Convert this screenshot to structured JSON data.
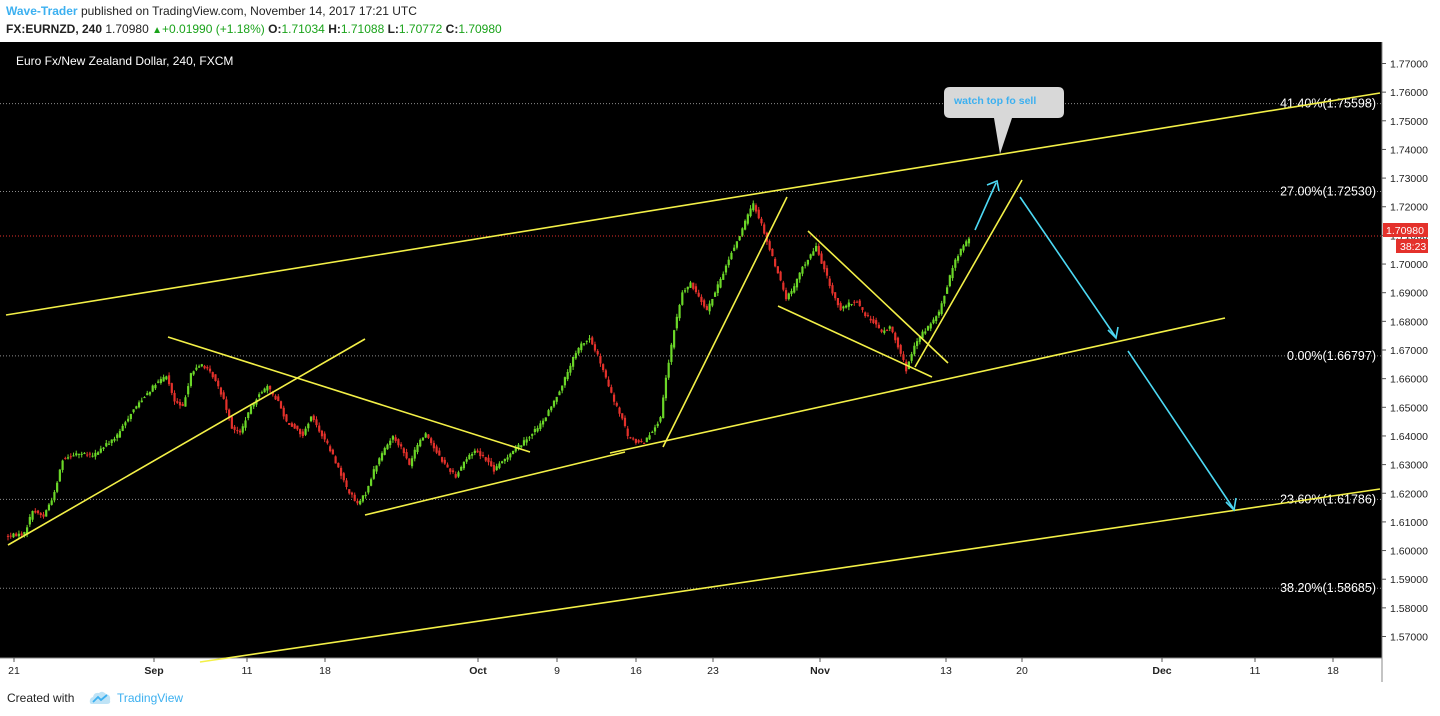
{
  "header": {
    "author": "Wave-Trader",
    "published": "published on TradingView.com, November 14, 2017 17:21 UTC",
    "symbol": "FX:EURNZD, 240",
    "last": "1.70980",
    "change_arrow": "▲",
    "change": "+0.01990 (+1.18%)",
    "o_label": "O:",
    "o_value": "1.71034",
    "h_label": "H:",
    "h_value": "1.71088",
    "l_label": "L:",
    "l_value": "1.70772",
    "c_label": "C:",
    "c_value": "1.70980"
  },
  "footer": {
    "created_with": "Created with",
    "brand": "TradingView"
  },
  "colors": {
    "background": "#000000",
    "up": "#6bd728",
    "down": "#e4312b",
    "trendline": "#f3f047",
    "arrow": "#4dd9f4",
    "last_price": "#e4312b"
  },
  "chart_data": {
    "type": "candlestick",
    "title": "Euro Fx/New Zealand Dollar, 240, FXCM",
    "ylim": [
      1.5625,
      1.7775
    ],
    "yticks": [
      "1.77000",
      "1.76000",
      "1.75000",
      "1.74000",
      "1.73000",
      "1.72000",
      "1.71000",
      "1.70000",
      "1.69000",
      "1.68000",
      "1.67000",
      "1.66000",
      "1.65000",
      "1.64000",
      "1.63000",
      "1.62000",
      "1.61000",
      "1.60000",
      "1.59000",
      "1.58000",
      "1.57000"
    ],
    "xticks": [
      "21",
      "Sep",
      "11",
      "18",
      "Oct",
      "9",
      "16",
      "23",
      "Nov",
      "13",
      "20",
      "Dec",
      "11",
      "18"
    ],
    "xtick_bold": [
      "Sep",
      "Oct",
      "Nov",
      "Dec"
    ],
    "last_price": "1.70980",
    "countdown": "38:23",
    "fib_levels": [
      {
        "label": "41.40%(1.75598)",
        "price": 1.75598
      },
      {
        "label": "27.00%(1.72530)",
        "price": 1.7253
      },
      {
        "label": "0.00%(1.66797)",
        "price": 1.66797
      },
      {
        "label": "23.60%(1.61786)",
        "price": 1.61786
      },
      {
        "label": "38.20%(1.58685)",
        "price": 1.58685
      }
    ],
    "annotation": "watch top fo sell",
    "price_path": [
      [
        0,
        1.605
      ],
      [
        6,
        1.606
      ],
      [
        9,
        1.614
      ],
      [
        13,
        1.612
      ],
      [
        17,
        1.62
      ],
      [
        20,
        1.632
      ],
      [
        25,
        1.634
      ],
      [
        31,
        1.633
      ],
      [
        36,
        1.637
      ],
      [
        40,
        1.64
      ],
      [
        45,
        1.648
      ],
      [
        50,
        1.654
      ],
      [
        54,
        1.658
      ],
      [
        58,
        1.661
      ],
      [
        61,
        1.652
      ],
      [
        64,
        1.65
      ],
      [
        67,
        1.662
      ],
      [
        71,
        1.665
      ],
      [
        75,
        1.661
      ],
      [
        79,
        1.653
      ],
      [
        82,
        1.643
      ],
      [
        85,
        1.641
      ],
      [
        88,
        1.648
      ],
      [
        92,
        1.655
      ],
      [
        95,
        1.657
      ],
      [
        99,
        1.652
      ],
      [
        102,
        1.645
      ],
      [
        105,
        1.643
      ],
      [
        108,
        1.64
      ],
      [
        111,
        1.647
      ],
      [
        114,
        1.642
      ],
      [
        117,
        1.637
      ],
      [
        120,
        1.631
      ],
      [
        124,
        1.622
      ],
      [
        128,
        1.616
      ],
      [
        131,
        1.62
      ],
      [
        134,
        1.628
      ],
      [
        137,
        1.634
      ],
      [
        141,
        1.64
      ],
      [
        144,
        1.636
      ],
      [
        147,
        1.63
      ],
      [
        150,
        1.637
      ],
      [
        153,
        1.641
      ],
      [
        156,
        1.636
      ],
      [
        160,
        1.63
      ],
      [
        164,
        1.626
      ],
      [
        167,
        1.631
      ],
      [
        171,
        1.635
      ],
      [
        175,
        1.632
      ],
      [
        178,
        1.628
      ],
      [
        181,
        1.631
      ],
      [
        185,
        1.635
      ],
      [
        189,
        1.638
      ],
      [
        192,
        1.641
      ],
      [
        196,
        1.645
      ],
      [
        200,
        1.652
      ],
      [
        204,
        1.66
      ],
      [
        207,
        1.667
      ],
      [
        210,
        1.672
      ],
      [
        213,
        1.674
      ],
      [
        216,
        1.668
      ],
      [
        219,
        1.66
      ],
      [
        222,
        1.652
      ],
      [
        225,
        1.646
      ],
      [
        227,
        1.64
      ],
      [
        230,
        1.638
      ],
      [
        233,
        1.638
      ],
      [
        236,
        1.642
      ],
      [
        239,
        1.646
      ],
      [
        241,
        1.66
      ],
      [
        244,
        1.677
      ],
      [
        247,
        1.69
      ],
      [
        250,
        1.693
      ],
      [
        253,
        1.689
      ],
      [
        256,
        1.684
      ],
      [
        259,
        1.69
      ],
      [
        262,
        1.697
      ],
      [
        265,
        1.704
      ],
      [
        268,
        1.71
      ],
      [
        271,
        1.717
      ],
      [
        273,
        1.721
      ],
      [
        276,
        1.714
      ],
      [
        279,
        1.705
      ],
      [
        282,
        1.697
      ],
      [
        285,
        1.688
      ],
      [
        288,
        1.692
      ],
      [
        291,
        1.699
      ],
      [
        294,
        1.703
      ],
      [
        296,
        1.706
      ],
      [
        299,
        1.698
      ],
      [
        302,
        1.69
      ],
      [
        305,
        1.684
      ],
      [
        308,
        1.686
      ],
      [
        311,
        1.687
      ],
      [
        314,
        1.682
      ],
      [
        317,
        1.68
      ],
      [
        320,
        1.676
      ],
      [
        323,
        1.678
      ],
      [
        325,
        1.674
      ],
      [
        327,
        1.669
      ],
      [
        329,
        1.663
      ],
      [
        332,
        1.671
      ],
      [
        335,
        1.676
      ],
      [
        338,
        1.679
      ],
      [
        341,
        1.683
      ],
      [
        343,
        1.689
      ],
      [
        346,
        1.699
      ],
      [
        349,
        1.705
      ],
      [
        352,
        1.709
      ]
    ]
  }
}
